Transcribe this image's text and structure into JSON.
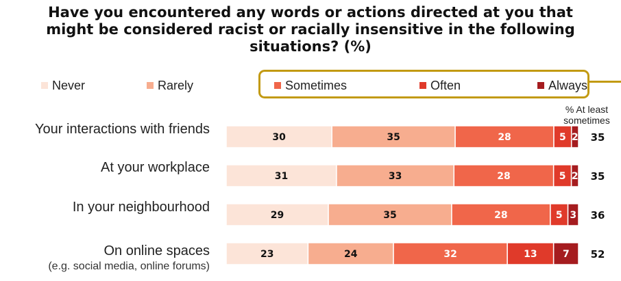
{
  "title": {
    "line1": "Have you encountered any words or actions directed at you that",
    "line2": "might be considered racist or racially insensitive in the following",
    "line3": "situations? (%)"
  },
  "at_least_header": {
    "line1": "% At least",
    "line2": "sometimes"
  },
  "chart_data": {
    "type": "bar",
    "orientation": "horizontal",
    "stacked": true,
    "title": "Have you encountered any words or actions directed at you that might be considered racist or racially insensitive in the following situations? (%)",
    "categories": [
      "Your interactions with friends",
      "At your workplace",
      "In your neighbourhood",
      "On online spaces"
    ],
    "category_sublabels": [
      "",
      "",
      "",
      "(e.g. social media, online forums)"
    ],
    "series": [
      {
        "name": "Never",
        "color": "#fce4d8",
        "values": [
          30,
          31,
          29,
          23
        ]
      },
      {
        "name": "Rarely",
        "color": "#f7ad8f",
        "values": [
          35,
          33,
          35,
          24
        ]
      },
      {
        "name": "Sometimes",
        "color": "#f0664a",
        "values": [
          28,
          28,
          28,
          32
        ]
      },
      {
        "name": "Often",
        "color": "#e03a2a",
        "values": [
          5,
          5,
          5,
          13
        ]
      },
      {
        "name": "Always",
        "color": "#a51c1f",
        "values": [
          2,
          2,
          3,
          7
        ]
      }
    ],
    "at_least_sometimes": [
      35,
      35,
      36,
      52
    ],
    "legend_position": "top",
    "grid": false
  }
}
